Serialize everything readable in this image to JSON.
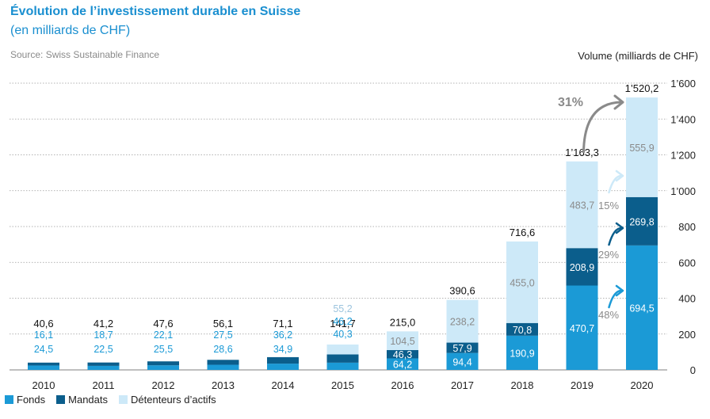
{
  "header": {
    "title": "Évolution de l’investissement durable en Suisse",
    "subtitle": "(en milliards de CHF)",
    "source": "Source: Swiss Sustainable Finance",
    "y_unit": "Volume (milliards de CHF)"
  },
  "colors": {
    "fonds": "#1b9ad6",
    "mandats": "#0b5e8c",
    "detenteurs": "#cde9f8",
    "axis_text": "#222222",
    "label_gray": "#8a8a8a",
    "title": "#1a8fd0"
  },
  "chart_data": {
    "type": "bar",
    "stacked": true,
    "categories": [
      "2010",
      "2011",
      "2012",
      "2013",
      "2014",
      "2015",
      "2016",
      "2017",
      "2018",
      "2019",
      "2020"
    ],
    "series": [
      {
        "name": "Fonds",
        "values": [
          24.5,
          22.5,
          25.5,
          28.6,
          34.9,
          40.3,
          64.2,
          94.4,
          190.9,
          470.7,
          694.5
        ],
        "labels": [
          "24,5",
          "22,5",
          "25,5",
          "28,6",
          "34,9",
          "40,3",
          "64,2",
          "94,4",
          "190,9",
          "470,7",
          "694,5"
        ]
      },
      {
        "name": "Mandats",
        "values": [
          16.1,
          18.7,
          22.1,
          27.5,
          36.2,
          46.2,
          46.3,
          57.9,
          70.8,
          208.9,
          269.8
        ],
        "labels": [
          "16,1",
          "18,7",
          "22,1",
          "27,5",
          "36,2",
          "46,2",
          "46,3",
          "57,9",
          "70,8",
          "208,9",
          "269,8"
        ]
      },
      {
        "name": "Détenteurs d’actifs",
        "values": [
          0,
          0,
          0,
          0,
          0,
          55.2,
          104.5,
          238.2,
          455.0,
          483.7,
          555.9
        ],
        "labels": [
          "",
          "",
          "",
          "",
          "",
          "55,2",
          "104,5",
          "238,2",
          "455,0",
          "483,7",
          "555,9"
        ]
      }
    ],
    "totals": [
      40.6,
      41.2,
      47.6,
      56.1,
      71.1,
      141.7,
      215.0,
      390.6,
      716.6,
      1163.3,
      1520.2
    ],
    "total_labels": [
      "40,6",
      "41,2",
      "47,6",
      "56,1",
      "71,1",
      "141,7",
      "215,0",
      "390,6",
      "716,6",
      "1’163,3",
      "1’520,2"
    ],
    "ylim": [
      0,
      1600
    ],
    "yticks": [
      0,
      200,
      400,
      600,
      800,
      1000,
      1200,
      1400,
      1600
    ],
    "ytick_labels": [
      "0",
      "200",
      "400",
      "600",
      "800",
      "1’000",
      "1’200",
      "1’400",
      "1’600"
    ],
    "grid": true,
    "legend_position": "bottom-left",
    "annotations": [
      {
        "text": "31%",
        "kind": "total"
      },
      {
        "text": "15%",
        "kind": "detenteurs"
      },
      {
        "text": "29%",
        "kind": "mandats"
      },
      {
        "text": "48%",
        "kind": "fonds"
      }
    ]
  },
  "legend": {
    "items": [
      {
        "label": "Fonds"
      },
      {
        "label": "Mandats"
      },
      {
        "label": "Détenteurs d’actifs"
      }
    ]
  }
}
